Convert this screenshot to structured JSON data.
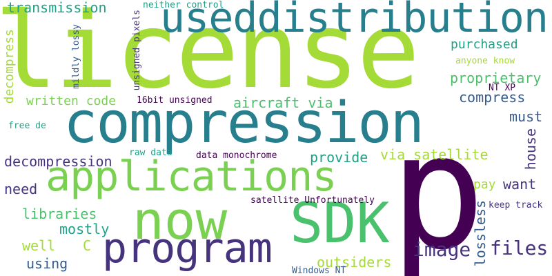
{
  "palette": {
    "lime": "#a5db36",
    "green": "#7ad151",
    "mint": "#4ac16d",
    "teal": "#1fa187",
    "ocean": "#277f8e",
    "slate": "#365c8d",
    "indigo": "#46337e",
    "purple": "#440154"
  },
  "words": {
    "license": "license",
    "compression": "compression",
    "p": "p",
    "useddistribution": "useddistribution",
    "applications": "applications",
    "now": "now",
    "sdk": "SDK",
    "program": "program",
    "transmission": "transmission",
    "neither_control": "neither control",
    "decompress": "decompress",
    "mildly_lossy": "mildly lossy",
    "unsigned_pixels": "unsigned pixels",
    "anyone_know": "anyone know",
    "purchased": "purchased",
    "proprietary": "proprietary",
    "nt_xp": "NT XP",
    "compress": "compress",
    "written_code": "written code",
    "bit_unsigned": "16bit unsigned",
    "aircraft_via": "aircraft via",
    "must": "must",
    "free_de": "free de",
    "house": "house",
    "decompression": "decompression",
    "raw_data": "raw data",
    "data_monochrome": "data monochrome",
    "provide": "provide",
    "via_satellite": "via satellite",
    "need": "need",
    "pay": "pay",
    "want": "want",
    "satellite_unfortunately": "satellite Unfortunately",
    "keep_track": "keep track",
    "libraries": "libraries",
    "mostly": "mostly",
    "well": "well",
    "c": "C",
    "image": "image",
    "files": "files",
    "lossless": "lossless",
    "using": "using",
    "outsiders": "outsiders",
    "windows_nt": "Windows NT"
  }
}
